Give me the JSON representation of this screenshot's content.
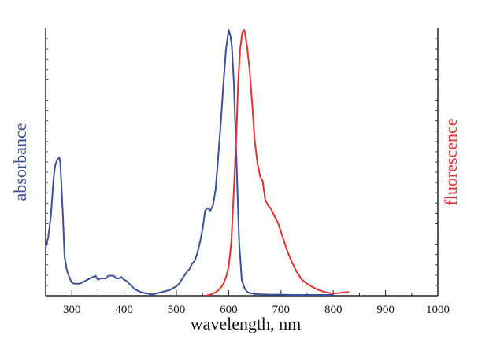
{
  "chart_data": {
    "type": "line",
    "title": "",
    "xlabel": "wavelength, nm",
    "ylabel_left": "absorbance",
    "ylabel_right": "fluorescence",
    "xlim": [
      250,
      1000
    ],
    "ylim": [
      0,
      1
    ],
    "xticks": [
      300,
      400,
      500,
      600,
      700,
      800,
      900,
      1000
    ],
    "grid": false,
    "legend": "none",
    "colors": {
      "absorbance": "#3a4fa0",
      "fluorescence": "#e8312f",
      "axis": "#222222"
    },
    "series": [
      {
        "x": [
          250,
          255,
          260,
          265,
          268,
          272,
          276,
          278,
          280,
          283,
          286,
          290,
          295,
          300,
          305,
          310,
          315,
          320,
          325,
          330,
          335,
          340,
          345,
          350,
          355,
          360,
          365,
          370,
          375,
          380,
          385,
          390,
          395,
          400,
          405,
          410,
          415,
          420,
          425,
          430,
          435,
          440,
          445,
          450,
          455,
          460,
          465,
          470,
          475,
          480,
          485,
          490,
          495,
          500,
          505,
          510,
          515,
          520,
          525,
          530,
          535,
          540,
          545,
          550,
          555,
          560,
          565,
          570,
          575,
          580,
          585,
          590,
          595,
          600,
          603,
          606,
          610,
          615,
          620,
          625,
          630,
          635,
          640,
          650,
          660,
          680,
          700,
          720,
          750,
          780,
          800
        ],
        "values": [
          0.18,
          0.22,
          0.3,
          0.44,
          0.49,
          0.51,
          0.52,
          0.5,
          0.42,
          0.3,
          0.15,
          0.1,
          0.07,
          0.05,
          0.045,
          0.045,
          0.045,
          0.05,
          0.055,
          0.06,
          0.065,
          0.07,
          0.075,
          0.06,
          0.065,
          0.065,
          0.065,
          0.075,
          0.075,
          0.075,
          0.065,
          0.065,
          0.07,
          0.06,
          0.055,
          0.045,
          0.035,
          0.025,
          0.02,
          0.015,
          0.012,
          0.01,
          0.008,
          0.006,
          0.005,
          0.007,
          0.01,
          0.013,
          0.015,
          0.018,
          0.02,
          0.024,
          0.03,
          0.035,
          0.045,
          0.06,
          0.075,
          0.09,
          0.1,
          0.12,
          0.13,
          0.16,
          0.2,
          0.25,
          0.32,
          0.33,
          0.32,
          0.34,
          0.4,
          0.52,
          0.65,
          0.8,
          0.93,
          1.0,
          0.98,
          0.94,
          0.8,
          0.5,
          0.2,
          0.06,
          0.03,
          0.015,
          0.01,
          0.007,
          0.005,
          0.004,
          0.004,
          0.003,
          0.003,
          0.003,
          0.003
        ]
      },
      {
        "x": [
          555,
          560,
          565,
          570,
          575,
          580,
          585,
          590,
          595,
          600,
          605,
          610,
          615,
          618,
          622,
          626,
          630,
          635,
          640,
          645,
          650,
          655,
          660,
          665,
          670,
          675,
          680,
          685,
          690,
          695,
          700,
          710,
          720,
          730,
          740,
          750,
          760,
          770,
          780,
          790,
          800,
          810,
          820,
          830
        ],
        "values": [
          0.0,
          0.002,
          0.004,
          0.008,
          0.013,
          0.02,
          0.03,
          0.045,
          0.07,
          0.11,
          0.2,
          0.4,
          0.62,
          0.8,
          0.93,
          0.99,
          1.0,
          0.94,
          0.85,
          0.72,
          0.58,
          0.5,
          0.45,
          0.43,
          0.36,
          0.34,
          0.33,
          0.31,
          0.29,
          0.27,
          0.24,
          0.18,
          0.13,
          0.09,
          0.06,
          0.045,
          0.033,
          0.023,
          0.016,
          0.011,
          0.008,
          0.01,
          0.012,
          0.014
        ]
      }
    ]
  }
}
